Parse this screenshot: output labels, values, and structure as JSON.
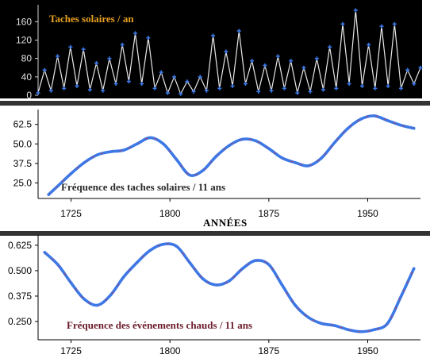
{
  "chart_data": [
    {
      "type": "line",
      "title": "Taches solaires / an",
      "ylim": [
        0,
        190
      ],
      "xlim": [
        1700,
        1990
      ],
      "yticks": [
        "0",
        "40",
        "80",
        "120",
        "160"
      ],
      "ytick_values": [
        0,
        40,
        80,
        120,
        160
      ],
      "grid": false,
      "colors": {
        "background": "#000000",
        "line": "#e8e8e8",
        "markers": "#3c78e6",
        "title": "#e8a020",
        "ticks": "#e0e0e0"
      },
      "series": [
        {
          "values": [
            5,
            55,
            10,
            85,
            15,
            105,
            20,
            100,
            12,
            70,
            10,
            80,
            25,
            110,
            30,
            135,
            25,
            125,
            15,
            50,
            5,
            40,
            3,
            30,
            8,
            40,
            10,
            130,
            15,
            95,
            20,
            140,
            25,
            75,
            8,
            65,
            10,
            85,
            15,
            75,
            5,
            60,
            8,
            80,
            12,
            105,
            15,
            155,
            25,
            185,
            20,
            110,
            15,
            150,
            20,
            155,
            15,
            55,
            25,
            60
          ],
          "x_start": 1700,
          "x_end": 1990
        }
      ]
    },
    {
      "type": "line",
      "title": "Fréquence des taches solaires / 11 ans",
      "xlabel": "ANNÉES",
      "xlim": [
        1700,
        1990
      ],
      "ylim": [
        15,
        70
      ],
      "yticks": [
        "25.0",
        "37.5",
        "50.0",
        "62.5"
      ],
      "ytick_values": [
        25,
        37.5,
        50,
        62.5
      ],
      "xticks": [
        "1725",
        "1800",
        "1875",
        "1950"
      ],
      "xtick_values": [
        1725,
        1800,
        1875,
        1950
      ],
      "grid": false,
      "colors": {
        "line": "#3c78e6",
        "accent": "#c83250",
        "title": "#2a2a2a"
      },
      "x": [
        1708,
        1715,
        1725,
        1735,
        1745,
        1755,
        1765,
        1775,
        1785,
        1795,
        1805,
        1815,
        1825,
        1835,
        1845,
        1855,
        1865,
        1875,
        1885,
        1895,
        1905,
        1915,
        1925,
        1935,
        1945,
        1955,
        1965,
        1975,
        1985
      ],
      "series": [
        {
          "values": [
            17.5,
            23,
            31,
            38,
            43,
            45,
            46,
            50,
            54,
            50,
            40,
            30,
            33,
            42,
            49,
            53,
            52,
            47,
            41,
            38,
            36,
            41,
            51,
            60,
            66,
            68,
            65,
            62,
            60
          ]
        }
      ]
    },
    {
      "type": "line",
      "title": "Fréquence des événements chauds / 11 ans",
      "xlim": [
        1700,
        1990
      ],
      "ylim": [
        0.16,
        0.66
      ],
      "yticks": [
        "0.250",
        "0.375",
        "0.500",
        "0.625"
      ],
      "ytick_values": [
        0.25,
        0.375,
        0.5,
        0.625
      ],
      "xticks": [
        "1725",
        "1800",
        "1875",
        "1950"
      ],
      "xtick_values": [
        1725,
        1800,
        1875,
        1950
      ],
      "grid": false,
      "colors": {
        "line": "#3c78e6",
        "accent": "#c83250",
        "title": "#6a1a28"
      },
      "x": [
        1705,
        1715,
        1725,
        1735,
        1745,
        1755,
        1765,
        1775,
        1785,
        1795,
        1805,
        1815,
        1825,
        1835,
        1845,
        1855,
        1865,
        1875,
        1885,
        1895,
        1905,
        1915,
        1925,
        1935,
        1945,
        1955,
        1965,
        1975,
        1985
      ],
      "series": [
        {
          "values": [
            0.59,
            0.53,
            0.44,
            0.36,
            0.33,
            0.38,
            0.47,
            0.54,
            0.6,
            0.63,
            0.62,
            0.54,
            0.46,
            0.43,
            0.45,
            0.51,
            0.55,
            0.53,
            0.43,
            0.33,
            0.27,
            0.24,
            0.23,
            0.21,
            0.2,
            0.21,
            0.24,
            0.37,
            0.51
          ]
        }
      ]
    }
  ]
}
